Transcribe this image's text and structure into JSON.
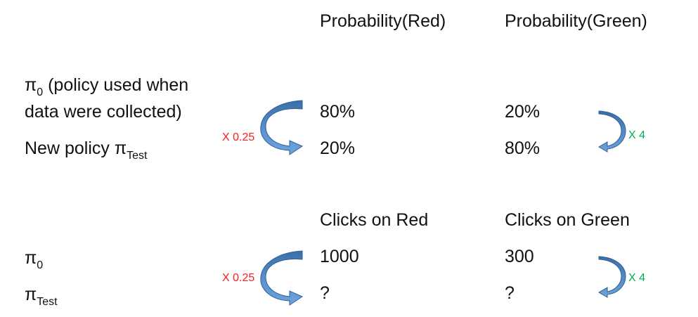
{
  "top_table": {
    "headers": [
      "Probability(Red)",
      "Probability(Green)"
    ],
    "rows": [
      {
        "label_lines": [
          "π",
          "0",
          " (policy used when",
          "data were collected)"
        ],
        "red": "80%",
        "green": "20%"
      },
      {
        "label_prefix": "New policy π",
        "label_sub": "Test",
        "red": "20%",
        "green": "80%"
      }
    ],
    "red_factor": "X 0.25",
    "green_factor": "X 4"
  },
  "bottom_table": {
    "headers": [
      "Clicks on Red",
      "Clicks on Green"
    ],
    "rows": [
      {
        "label": "π",
        "label_sub": "0",
        "red": "1000",
        "green": "300"
      },
      {
        "label": "π",
        "label_sub": "Test",
        "red": "?",
        "green": "?"
      }
    ],
    "red_factor": "X 0.25",
    "green_factor": "X 4"
  },
  "colors": {
    "arrow": "#4f86c6",
    "arrow_dark": "#2f5f95",
    "red_factor": "#ff1a1a",
    "green_factor": "#00b050"
  }
}
